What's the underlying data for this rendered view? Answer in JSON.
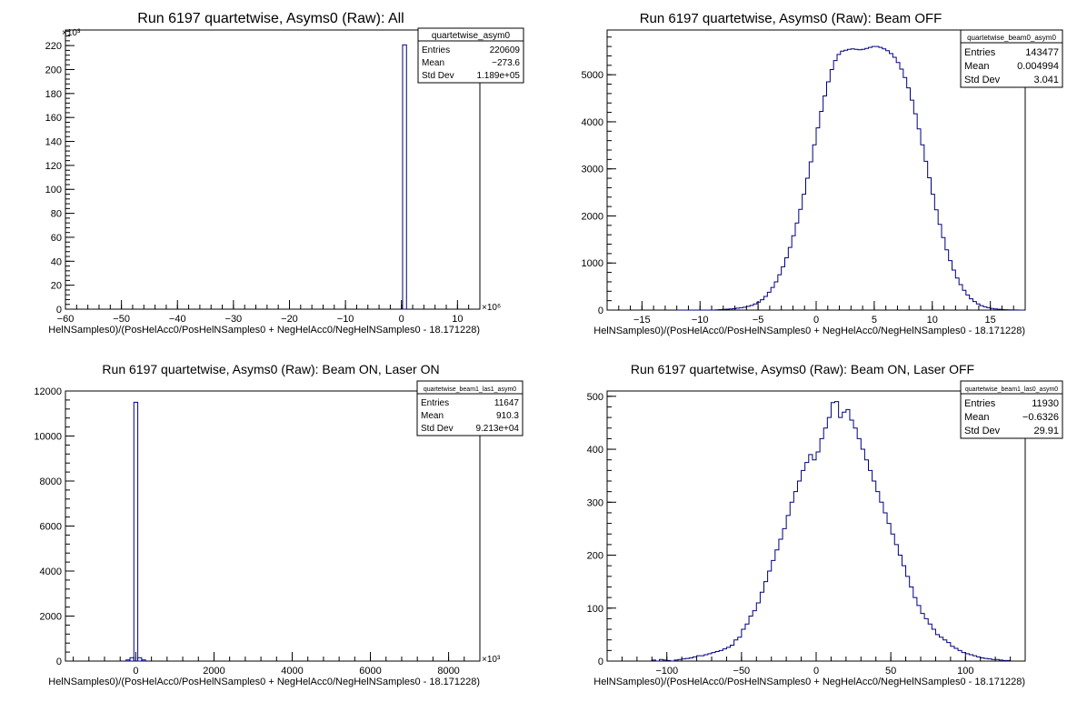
{
  "chart_data": [
    {
      "type": "bar",
      "title": "Run 6197 quartetwise, Asyms0 (Raw): All",
      "xlabel": "HelNSamples0)/(PosHelAcc0/PosHelNSamples0 + NegHelAcc0/NegHelNSamples0 - 18.171228)",
      "x_exponent": "×10⁶",
      "y_exponent": "×10³",
      "xlim": [
        -60,
        14
      ],
      "ylim": [
        0,
        233
      ],
      "x_ticks": [
        -60,
        -50,
        -40,
        -30,
        -20,
        -10,
        0,
        10
      ],
      "y_ticks": [
        0,
        20,
        40,
        60,
        80,
        100,
        120,
        140,
        160,
        180,
        200,
        220
      ],
      "bins": [
        {
          "x0": 0.2,
          "x1": 0.9,
          "y": 220.6
        }
      ],
      "stats": {
        "name": "quartetwise_asym0",
        "rows": [
          [
            "Entries",
            "220609"
          ],
          [
            "Mean",
            "−273.6"
          ],
          [
            "Std Dev",
            "1.189e+05"
          ]
        ]
      }
    },
    {
      "type": "bar",
      "title": "Run 6197 quartetwise, Asyms0 (Raw): Beam OFF",
      "xlabel": "HelNSamples0)/(PosHelAcc0/PosHelNSamples0 + NegHelAcc0/NegHelNSamples0 - 18.171228)",
      "x_exponent": "",
      "y_exponent": "",
      "xlim": [
        -18,
        18
      ],
      "ylim": [
        0,
        5950
      ],
      "x_ticks": [
        -15,
        -10,
        -5,
        0,
        5,
        10,
        15
      ],
      "y_ticks": [
        0,
        1000,
        2000,
        3000,
        4000,
        5000
      ],
      "histogram": {
        "x0": -12,
        "width": 0.3,
        "values": [
          0,
          0,
          0,
          0,
          0,
          0,
          0,
          0,
          0,
          0,
          0,
          5,
          10,
          15,
          20,
          25,
          30,
          40,
          50,
          60,
          80,
          100,
          130,
          170,
          220,
          290,
          380,
          480,
          600,
          750,
          920,
          1110,
          1330,
          1580,
          1850,
          2140,
          2460,
          2800,
          3150,
          3510,
          3870,
          4220,
          4550,
          4850,
          5110,
          5300,
          5430,
          5500,
          5520,
          5540,
          5550,
          5540,
          5530,
          5540,
          5560,
          5580,
          5600,
          5600,
          5580,
          5550,
          5510,
          5450,
          5370,
          5260,
          5120,
          4940,
          4720,
          4460,
          4170,
          3850,
          3510,
          3160,
          2810,
          2460,
          2130,
          1820,
          1540,
          1280,
          1050,
          850,
          680,
          540,
          420,
          320,
          240,
          180,
          130,
          95,
          70,
          50,
          35,
          25,
          18,
          12,
          8,
          5,
          3,
          2,
          1,
          0
        ]
      },
      "stats": {
        "name": "quartetwise_beam0_asym0",
        "rows": [
          [
            "Entries",
            "143477"
          ],
          [
            "Mean",
            "0.004994"
          ],
          [
            "Std Dev",
            "3.041"
          ]
        ]
      }
    },
    {
      "type": "bar",
      "title": "Run 6197 quartetwise, Asyms0 (Raw): Beam ON, Laser ON",
      "xlabel": "HelNSamples0)/(PosHelAcc0/PosHelNSamples0 + NegHelAcc0/NegHelNSamples0 - 18.171228)",
      "x_exponent": "×10³",
      "y_exponent": "",
      "xlim": [
        -1800,
        8800
      ],
      "ylim": [
        0,
        12000
      ],
      "x_ticks": [
        0,
        2000,
        4000,
        6000,
        8000
      ],
      "y_ticks": [
        0,
        2000,
        4000,
        6000,
        8000,
        10000,
        12000
      ],
      "bins": [
        {
          "x0": -250,
          "x1": -150,
          "y": 50
        },
        {
          "x0": -150,
          "x1": -50,
          "y": 150
        },
        {
          "x0": -50,
          "x1": 50,
          "y": 11500
        },
        {
          "x0": 50,
          "x1": 150,
          "y": 150
        },
        {
          "x0": 150,
          "x1": 250,
          "y": 50
        }
      ],
      "stats": {
        "name": "quartetwise_beam1_las1_asym0",
        "rows": [
          [
            "Entries",
            "11647"
          ],
          [
            "Mean",
            "910.3"
          ],
          [
            "Std Dev",
            "9.213e+04"
          ]
        ]
      }
    },
    {
      "type": "bar",
      "title": "Run 6197 quartetwise, Asyms0 (Raw): Beam ON, Laser OFF",
      "xlabel": "HelNSamples0)/(PosHelAcc0/PosHelNSamples0 + NegHelAcc0/NegHelNSamples0 - 18.171228)",
      "x_exponent": "",
      "y_exponent": "",
      "xlim": [
        -140,
        140
      ],
      "ylim": [
        0,
        510
      ],
      "x_ticks": [
        -100,
        -50,
        0,
        50,
        100
      ],
      "y_ticks": [
        0,
        100,
        200,
        300,
        400,
        500
      ],
      "histogram": {
        "x0": -110,
        "width": 2.5,
        "values": [
          2,
          0,
          3,
          2,
          1,
          0,
          2,
          3,
          4,
          5,
          6,
          8,
          10,
          10,
          12,
          14,
          16,
          18,
          20,
          23,
          26,
          30,
          40,
          45,
          60,
          70,
          85,
          95,
          110,
          130,
          150,
          170,
          190,
          210,
          230,
          250,
          275,
          300,
          320,
          340,
          360,
          375,
          390,
          380,
          395,
          420,
          440,
          460,
          488,
          490,
          460,
          470,
          475,
          455,
          440,
          420,
          400,
          380,
          360,
          340,
          320,
          300,
          280,
          260,
          240,
          220,
          200,
          180,
          160,
          140,
          120,
          105,
          90,
          80,
          70,
          60,
          50,
          45,
          40,
          35,
          28,
          24,
          20,
          16,
          14,
          12,
          10,
          8,
          6,
          5,
          4,
          3,
          3,
          2,
          1,
          1
        ]
      },
      "stats": {
        "name": "quartetwise_beam1_las0_asym0",
        "rows": [
          [
            "Entries",
            "11930"
          ],
          [
            "Mean",
            "−0.6326"
          ],
          [
            "Std Dev",
            "29.91"
          ]
        ]
      }
    }
  ]
}
